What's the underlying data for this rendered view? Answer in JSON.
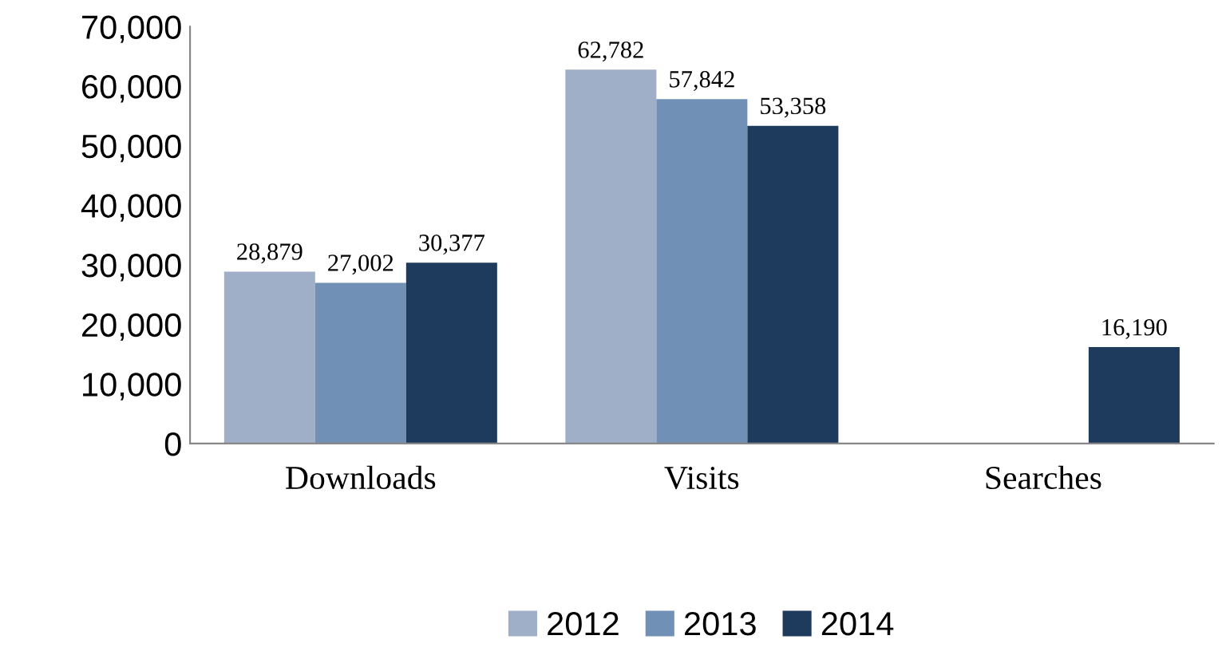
{
  "chart_data": {
    "type": "bar",
    "categories": [
      "Downloads",
      "Visits",
      "Searches"
    ],
    "series": [
      {
        "name": "2012",
        "color": "#9eafc7",
        "values": [
          28879,
          62782,
          null
        ],
        "value_labels": [
          "28,879",
          "62,782",
          null
        ]
      },
      {
        "name": "2013",
        "color": "#7090b5",
        "values": [
          27002,
          57842,
          null
        ],
        "value_labels": [
          "27,002",
          "57,842",
          null
        ]
      },
      {
        "name": "2014",
        "color": "#1e3a5c",
        "values": [
          30377,
          53358,
          16190
        ],
        "value_labels": [
          "30,377",
          "53,358",
          "16,190"
        ]
      }
    ],
    "ylim": [
      0,
      70000
    ],
    "yticks": [
      0,
      {
        "value": 10000,
        "label": "10,000"
      },
      {
        "value": 20000,
        "label": "20,000"
      },
      {
        "value": 30000,
        "label": "30,000"
      },
      {
        "value": 40000,
        "label": "40,000"
      },
      {
        "value": 50000,
        "label": "50,000"
      },
      {
        "value": 60000,
        "label": "60,000"
      },
      {
        "value": 70000,
        "label": "70,000"
      }
    ],
    "grid": false,
    "legend": "bottom"
  }
}
